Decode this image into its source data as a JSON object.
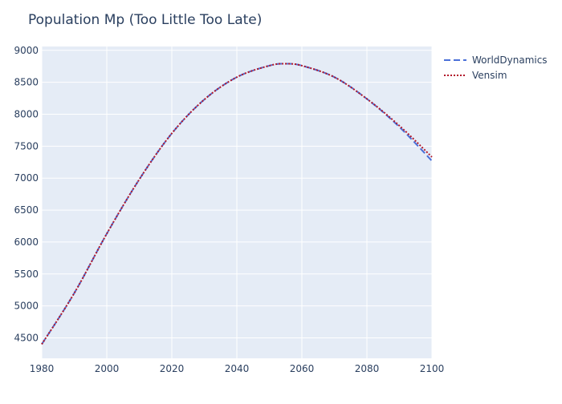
{
  "chart_data": {
    "type": "line",
    "title": "Population Mp (Too Little Too Late)",
    "xlabel": "",
    "ylabel": "",
    "xlim": [
      1980,
      2100
    ],
    "ylim": [
      4180,
      9060
    ],
    "x_ticks": [
      1980,
      2000,
      2020,
      2040,
      2060,
      2080,
      2100
    ],
    "y_ticks": [
      4500,
      5000,
      5500,
      6000,
      6500,
      7000,
      7500,
      8000,
      8500,
      9000
    ],
    "grid": true,
    "legend_position": "top-right",
    "x": [
      1980,
      1990,
      2000,
      2010,
      2020,
      2030,
      2040,
      2050,
      2055,
      2060,
      2070,
      2080,
      2090,
      2100
    ],
    "series": [
      {
        "name": "WorldDynamics",
        "color": "#4a6fd8",
        "dash": "dashed",
        "values": [
          4400,
          5200,
          6130,
          6980,
          7700,
          8230,
          8580,
          8760,
          8790,
          8760,
          8580,
          8240,
          7800,
          7270
        ]
      },
      {
        "name": "Vensim",
        "color": "#b2182b",
        "dash": "dotted",
        "values": [
          4400,
          5200,
          6130,
          6980,
          7700,
          8230,
          8580,
          8760,
          8790,
          8760,
          8580,
          8240,
          7820,
          7330
        ]
      }
    ]
  },
  "colors": {
    "plot_background": "#e5ecf6",
    "grid": "#ffffff",
    "text": "#2a3f5f"
  }
}
